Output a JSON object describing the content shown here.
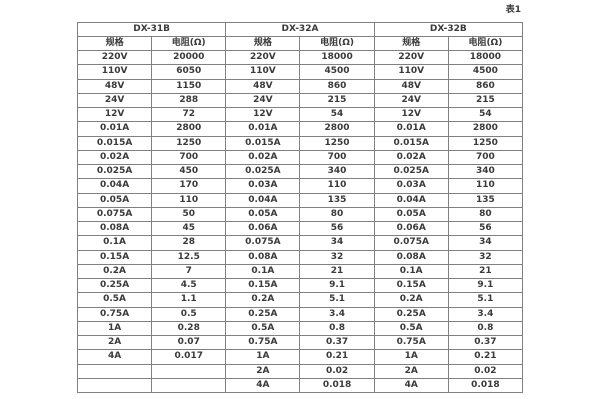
{
  "caption": "表1",
  "table": {
    "groups": [
      {
        "name": "DX-31B",
        "columns": [
          "规格",
          "电阻(Ω)"
        ]
      },
      {
        "name": "DX-32A",
        "columns": [
          "规格",
          "电阻(Ω)"
        ]
      },
      {
        "name": "DX-32B",
        "columns": [
          "规格",
          "电阻(Ω)"
        ]
      }
    ],
    "rows": [
      [
        "220V",
        "20000",
        "220V",
        "18000",
        "220V",
        "18000"
      ],
      [
        "110V",
        "6050",
        "110V",
        "4500",
        "110V",
        "4500"
      ],
      [
        "48V",
        "1150",
        "48V",
        "860",
        "48V",
        "860"
      ],
      [
        "24V",
        "288",
        "24V",
        "215",
        "24V",
        "215"
      ],
      [
        "12V",
        "72",
        "12V",
        "54",
        "12V",
        "54"
      ],
      [
        "0.01A",
        "2800",
        "0.01A",
        "2800",
        "0.01A",
        "2800"
      ],
      [
        "0.015A",
        "1250",
        "0.015A",
        "1250",
        "0.015A",
        "1250"
      ],
      [
        "0.02A",
        "700",
        "0.02A",
        "700",
        "0.02A",
        "700"
      ],
      [
        "0.025A",
        "450",
        "0.025A",
        "340",
        "0.025A",
        "340"
      ],
      [
        "0.04A",
        "170",
        "0.03A",
        "110",
        "0.03A",
        "110"
      ],
      [
        "0.05A",
        "110",
        "0.04A",
        "135",
        "0.04A",
        "135"
      ],
      [
        "0.075A",
        "50",
        "0.05A",
        "80",
        "0.05A",
        "80"
      ],
      [
        "0.08A",
        "45",
        "0.06A",
        "56",
        "0.06A",
        "56"
      ],
      [
        "0.1A",
        "28",
        "0.075A",
        "34",
        "0.075A",
        "34"
      ],
      [
        "0.15A",
        "12.5",
        "0.08A",
        "32",
        "0.08A",
        "32"
      ],
      [
        "0.2A",
        "7",
        "0.1A",
        "21",
        "0.1A",
        "21"
      ],
      [
        "0.25A",
        "4.5",
        "0.15A",
        "9.1",
        "0.15A",
        "9.1"
      ],
      [
        "0.5A",
        "1.1",
        "0.2A",
        "5.1",
        "0.2A",
        "5.1"
      ],
      [
        "0.75A",
        "0.5",
        "0.25A",
        "3.4",
        "0.25A",
        "3.4"
      ],
      [
        "1A",
        "0.28",
        "0.5A",
        "0.8",
        "0.5A",
        "0.8"
      ],
      [
        "2A",
        "0.07",
        "0.75A",
        "0.37",
        "0.75A",
        "0.37"
      ],
      [
        "4A",
        "0.017",
        "1A",
        "0.21",
        "1A",
        "0.21"
      ],
      [
        "",
        "",
        "2A",
        "0.02",
        "2A",
        "0.02"
      ],
      [
        "",
        "",
        "4A",
        "0.018",
        "4A",
        "0.018"
      ]
    ]
  },
  "colors": {
    "border": "#808080",
    "outer_border": "#595959",
    "text": "#3a3a3a",
    "background": "#ffffff"
  }
}
